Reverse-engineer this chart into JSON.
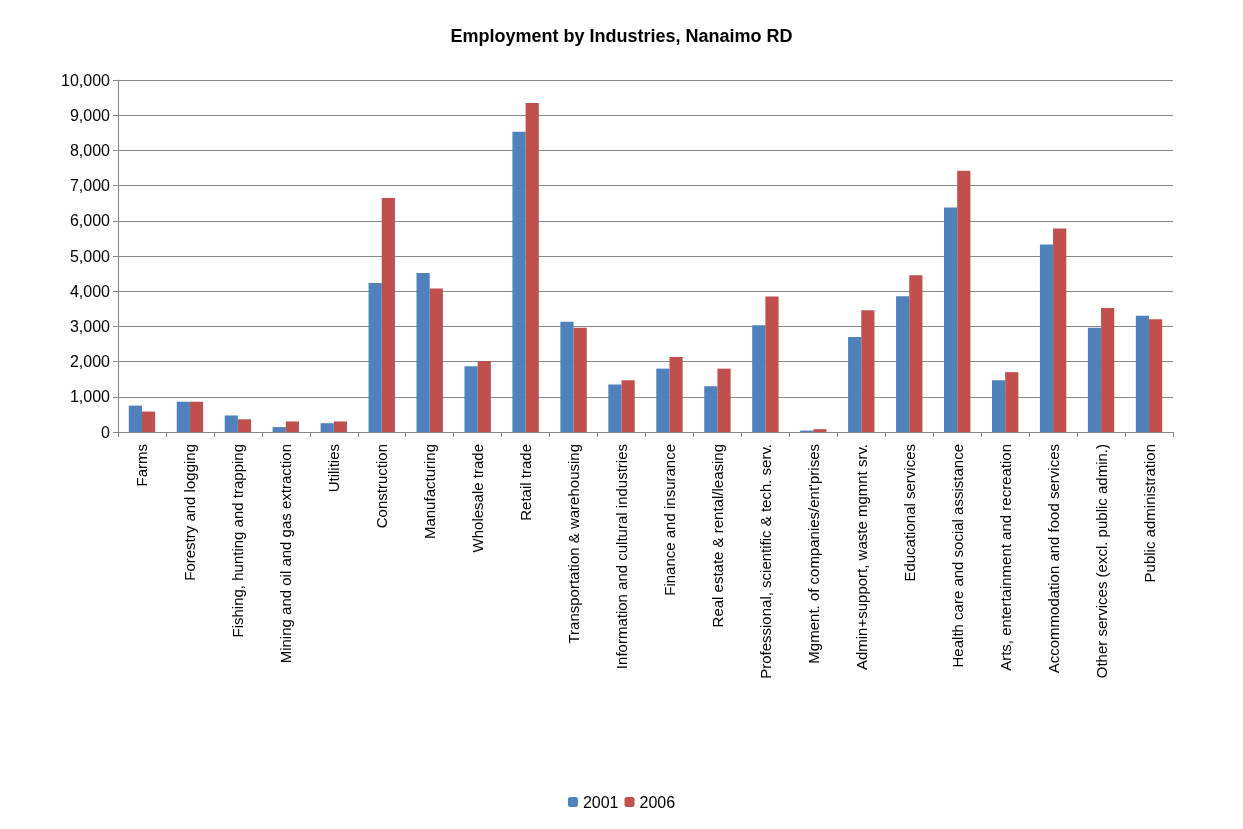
{
  "chart_data": {
    "type": "bar",
    "title": "Employment by Industries, Nanaimo RD",
    "categories": [
      "Farms",
      "Forestry and logging",
      "Fishing, hunting and trapping",
      "Mining and oil and gas extraction",
      "Utilities",
      "Construction",
      "Manufacturing",
      "Wholesale trade",
      "Retail trade",
      "Transportation & warehousing",
      "Information and cultural industries",
      "Finance and insurance",
      "Real estate & rental/leasing",
      "Professional, scientific & tech. serv.",
      "Mgment. of companies/ent'prises",
      "Admin+support, waste mgmnt srv.",
      "Educational services",
      "Health care and social assistance",
      "Arts, entertainment and recreation",
      "Accommodation and food services",
      "Other services (excl. public admin.)",
      "Public administration"
    ],
    "series": [
      {
        "name": "2001",
        "color": "#4f81bd",
        "values": [
          750,
          860,
          470,
          140,
          250,
          4230,
          4520,
          1870,
          8530,
          3130,
          1350,
          1800,
          1300,
          3030,
          40,
          2700,
          3860,
          6380,
          1470,
          5330,
          2960,
          3300
        ]
      },
      {
        "name": "2006",
        "color": "#c0504d",
        "values": [
          580,
          860,
          360,
          300,
          300,
          6650,
          4080,
          2020,
          9350,
          2960,
          1470,
          2130,
          1800,
          3850,
          80,
          3460,
          4450,
          7420,
          1700,
          5780,
          3520,
          3200
        ]
      }
    ],
    "ylim": [
      0,
      10000
    ],
    "yticks": [
      0,
      {
        "value": 1000,
        "label": "1,000"
      },
      {
        "value": 2000,
        "label": "2,000"
      },
      {
        "value": 3000,
        "label": "3,000"
      },
      {
        "value": 4000,
        "label": "4,000"
      },
      {
        "value": 5000,
        "label": "5,000"
      },
      {
        "value": 6000,
        "label": "6,000"
      },
      {
        "value": 7000,
        "label": "7,000"
      },
      {
        "value": 8000,
        "label": "8,000"
      },
      {
        "value": 9000,
        "label": "9,000"
      },
      {
        "value": 10000,
        "label": "10,000"
      }
    ],
    "grid": "y",
    "legend": "bottom"
  }
}
